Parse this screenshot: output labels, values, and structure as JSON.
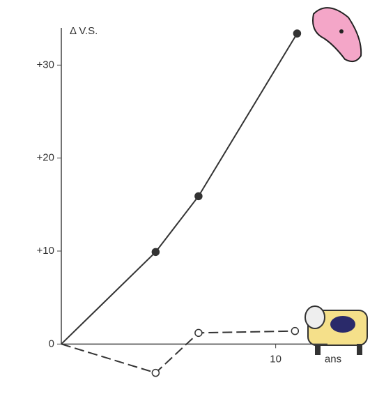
{
  "chart_data": {
    "type": "line",
    "y_label": "Δ V.S.",
    "x_label": "ans",
    "xlim": [
      0,
      14.4
    ],
    "xticks": [
      10
    ],
    "ylim": [
      -5,
      34
    ],
    "yticks": [
      {
        "value": 0,
        "label": "0"
      },
      {
        "value": 10,
        "label": "+10"
      },
      {
        "value": 20,
        "label": "+20"
      },
      {
        "value": 30,
        "label": "+30"
      }
    ],
    "series": [
      {
        "color": "#333333",
        "style": "solid",
        "marker": "filled",
        "x": [
          0,
          4.4,
          6.4,
          11.0
        ],
        "values": [
          0,
          9.9,
          15.9,
          33.4
        ]
      },
      {
        "color": "#333333",
        "style": "dashed",
        "marker": "open",
        "x": [
          0,
          4.4,
          6.4,
          10.9
        ],
        "values": [
          0,
          -3.1,
          1.2,
          1.4
        ]
      }
    ]
  }
}
